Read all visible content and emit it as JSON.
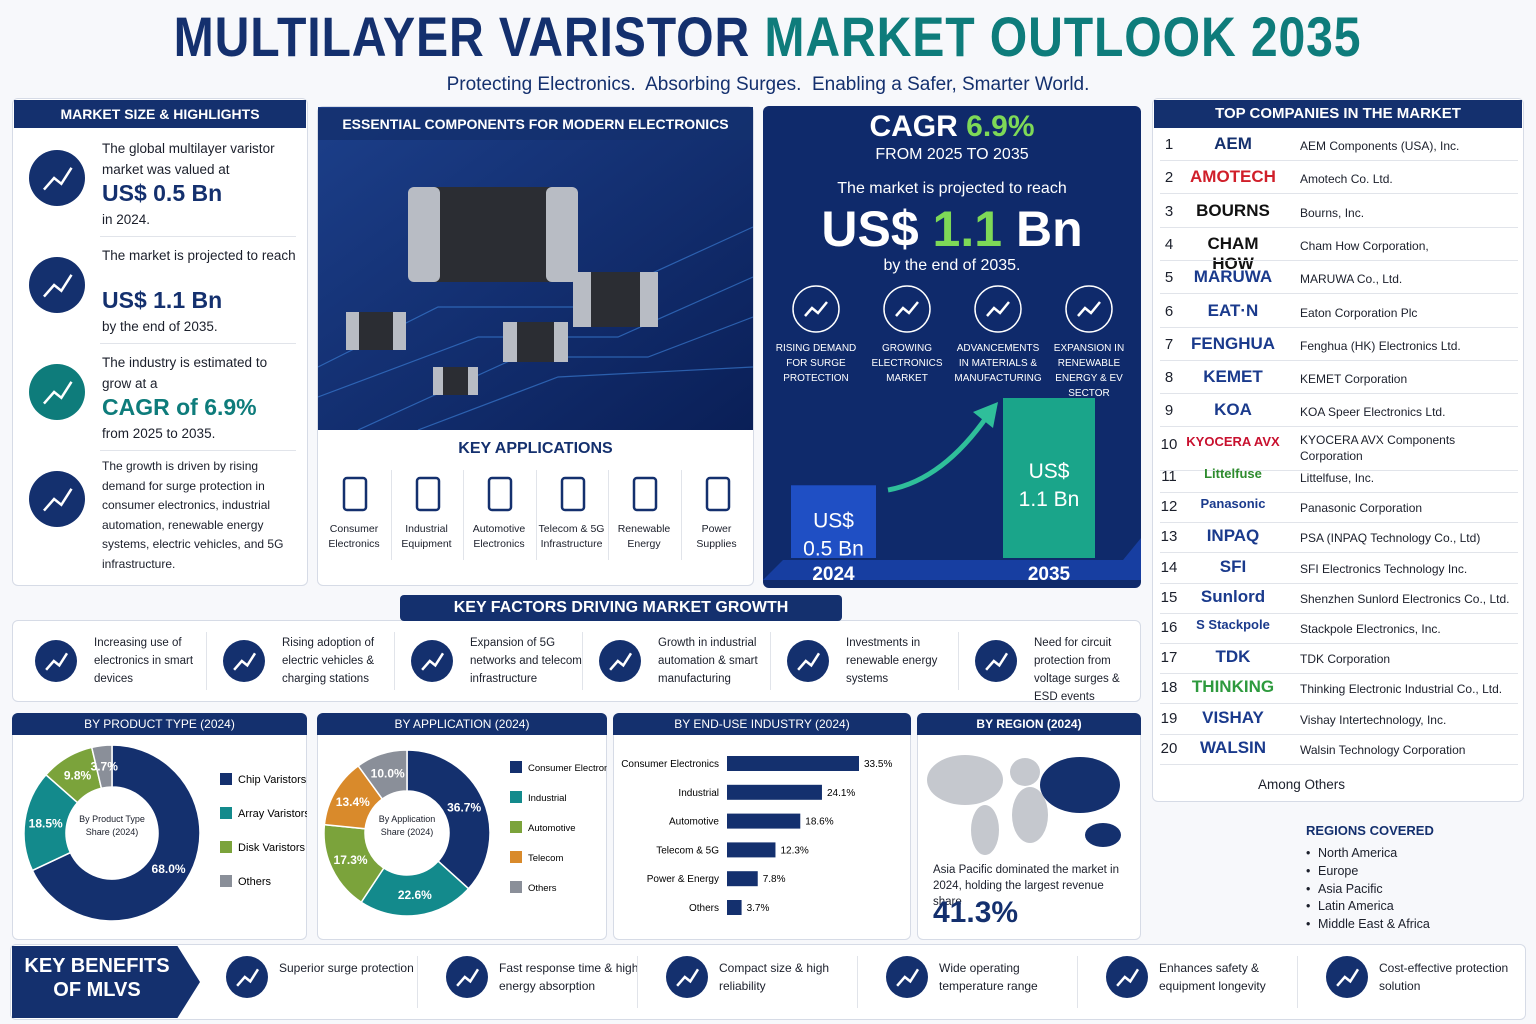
{
  "header": {
    "title_part1": "MULTILAYER VARISTOR",
    "title_part2": "MARKET OUTLOOK 2035",
    "tagline": "Protecting Electronics.  Absorbing Surges.  Enabling a Safer, Smarter World."
  },
  "market_size": {
    "heading": "MARKET SIZE & HIGHLIGHTS",
    "items": [
      {
        "text": "The global multilayer varistor market was valued at",
        "value": "US$ 0.5 Bn",
        "suffix": "in 2024."
      },
      {
        "text": "The market is projected to reach",
        "value": "US$ 1.1 Bn",
        "suffix": "by the end of 2035."
      },
      {
        "text": "The industry is estimated to grow at a",
        "value": "CAGR of 6.9%",
        "suffix": "from 2025 to 2035."
      },
      {
        "text": "The growth is driven by rising demand for surge protection in consumer electronics, industrial automation, renewable energy systems, electric vehicles, and 5G infrastructure."
      }
    ]
  },
  "components": {
    "heading": "ESSENTIAL COMPONENTS FOR MODERN ELECTRONICS",
    "applications_heading": "KEY APPLICATIONS",
    "applications": [
      "Consumer Electronics",
      "Industrial Equipment",
      "Automotive Electronics",
      "Telecom & 5G Infrastructure",
      "Renewable Energy",
      "Power Supplies"
    ]
  },
  "outlook": {
    "cagr_label": "CAGR",
    "cagr_value": "6.9%",
    "period": "FROM 2025 TO 2035",
    "projection": "The market is projected to reach",
    "value_prefix": "US$",
    "value": "1.1",
    "value_suffix": "Bn",
    "by": "by the end of 2035.",
    "drivers": [
      "RISING DEMAND FOR SURGE PROTECTION",
      "GROWING ELECTRONICS MARKET",
      "ADVANCEMENTS IN MATERIALS & MANUFACTURING",
      "EXPANSION IN RENEWABLE ENERGY & EV SECTOR"
    ]
  },
  "companies": {
    "heading": "TOP COMPANIES IN THE MARKET",
    "rows": [
      {
        "rank": 1,
        "logo": "AEM",
        "logo_color": "#14306e",
        "name": "AEM Components (USA), Inc."
      },
      {
        "rank": 2,
        "logo": "AMOTECH",
        "logo_color": "#d01f2a",
        "name": "Amotech Co. Ltd."
      },
      {
        "rank": 3,
        "logo": "BOURNS",
        "logo_color": "#111111",
        "name": "Bourns, Inc."
      },
      {
        "rank": 4,
        "logo": "CHAM HOW",
        "logo_color": "#111111",
        "name": "Cham How Corporation,"
      },
      {
        "rank": 5,
        "logo": "MARUWA",
        "logo_color": "#1a3a8c",
        "name": "MARUWA Co., Ltd."
      },
      {
        "rank": 6,
        "logo": "EAT·N",
        "logo_color": "#1a3a8c",
        "name": "Eaton Corporation Plc"
      },
      {
        "rank": 7,
        "logo": "FENGHUA",
        "logo_color": "#1a3a8c",
        "name": "Fenghua (HK) Electronics Ltd."
      },
      {
        "rank": 8,
        "logo": "KEMET",
        "logo_color": "#1a3a8c",
        "name": "KEMET Corporation"
      },
      {
        "rank": 9,
        "logo": "KOA",
        "logo_color": "#1a3a8c",
        "name": "KOA Speer Electronics Ltd."
      },
      {
        "rank": 10,
        "logo": "KYOCERA AVX",
        "logo_color": "#c8102e",
        "name": "KYOCERA AVX Components Corporation"
      },
      {
        "rank": 11,
        "logo": "Littelfuse",
        "logo_color": "#2e8b2e",
        "name": "Littelfuse, Inc."
      },
      {
        "rank": 12,
        "logo": "Panasonic",
        "logo_color": "#1a3a8c",
        "name": "Panasonic Corporation"
      },
      {
        "rank": 13,
        "logo": "INPAQ",
        "logo_color": "#1a3a8c",
        "name": "PSA (INPAQ Technology Co., Ltd)"
      },
      {
        "rank": 14,
        "logo": "SFI",
        "logo_color": "#1a3a8c",
        "name": "SFI Electronics Technology Inc."
      },
      {
        "rank": 15,
        "logo": "Sunlord",
        "logo_color": "#1a3a8c",
        "name": "Shenzhen Sunlord Electronics Co., Ltd."
      },
      {
        "rank": 16,
        "logo": "S Stackpole",
        "logo_color": "#1a3a8c",
        "name": "Stackpole Electronics, Inc."
      },
      {
        "rank": 17,
        "logo": "TDK",
        "logo_color": "#1a3a8c",
        "name": "TDK Corporation"
      },
      {
        "rank": 18,
        "logo": "THINKING",
        "logo_color": "#2e9a3e",
        "name": "Thinking Electronic Industrial Co., Ltd."
      },
      {
        "rank": 19,
        "logo": "VISHAY",
        "logo_color": "#1a3a8c",
        "name": "Vishay Intertechnology, Inc."
      },
      {
        "rank": 20,
        "logo": "WALSIN",
        "logo_color": "#1a3a8c",
        "name": "Walsin Technology Corporation"
      }
    ],
    "others": "Among Others"
  },
  "key_factors": {
    "heading": "KEY FACTORS DRIVING MARKET GROWTH",
    "items": [
      "Increasing use of electronics in smart devices",
      "Rising adoption of electric vehicles & charging stations",
      "Expansion of 5G networks and telecom infrastructure",
      "Growth in industrial automation & smart manufacturing",
      "Investments in renewable energy systems",
      "Need for circuit protection from voltage surges & ESD events"
    ]
  },
  "region": {
    "heading": "BY REGION (2024)",
    "note": "Asia Pacific dominated the market in 2024, holding the largest revenue share",
    "share": "41.3%",
    "covered_heading": "REGIONS COVERED",
    "covered": [
      "North America",
      "Europe",
      "Asia Pacific",
      "Latin America",
      "Middle East & Africa"
    ]
  },
  "benefits": {
    "heading": "KEY BENEFITS OF MLVS",
    "items": [
      "Superior surge protection",
      "Fast response time & high energy absorption",
      "Compact size & high reliability",
      "Wide operating temperature range",
      "Enhances safety & equipment longevity",
      "Cost-effective protection solution"
    ]
  },
  "chart_data": [
    {
      "type": "column",
      "categories": [
        "2024",
        "2035"
      ],
      "values": [
        0.5,
        1.1
      ],
      "value_labels": [
        "US$ 0.5 Bn",
        "US$ 1.1 Bn"
      ],
      "colors": [
        "#1f4fc4",
        "#1aa58a"
      ]
    },
    {
      "type": "pie",
      "title": "BY PRODUCT TYPE (2024)",
      "center_label": "By Product Type Share (2024)",
      "categories": [
        "Chip Varistors",
        "Array Varistors",
        "Disk Varistors",
        "Others"
      ],
      "values": [
        68,
        18.5,
        9.8,
        3.7
      ],
      "value_labels": [
        "68.0%",
        "18.5%",
        "9.8%",
        "3.7%"
      ],
      "colors": [
        "#14306e",
        "#138a8c",
        "#7ba33b",
        "#8a8f99"
      ]
    },
    {
      "type": "pie",
      "title": "BY APPLICATION (2024)",
      "center_label": "By Application Share (2024)",
      "categories": [
        "Consumer Electronics",
        "Industrial",
        "Automotive",
        "Telecom",
        "Others"
      ],
      "values": [
        36.7,
        22.6,
        17.3,
        13.4,
        10
      ],
      "value_labels": [
        "36.7%",
        "22.6%",
        "17.3%",
        "13.4%",
        "10.0%"
      ],
      "colors": [
        "#14306e",
        "#138a8c",
        "#7ba33b",
        "#d98a2b",
        "#8a8f99"
      ]
    },
    {
      "type": "hbar",
      "title": "BY END-USE INDUSTRY (2024)",
      "categories": [
        "Consumer Electronics",
        "Industrial",
        "Automotive",
        "Telecom & 5G",
        "Power & Energy",
        "Others"
      ],
      "values": [
        33.5,
        24.1,
        18.6,
        12.3,
        7.8,
        3.7
      ],
      "value_labels": [
        "33.5%",
        "24.1%",
        "18.6%",
        "12.3%",
        "7.8%",
        "3.7%"
      ],
      "color": "#14306e"
    }
  ]
}
